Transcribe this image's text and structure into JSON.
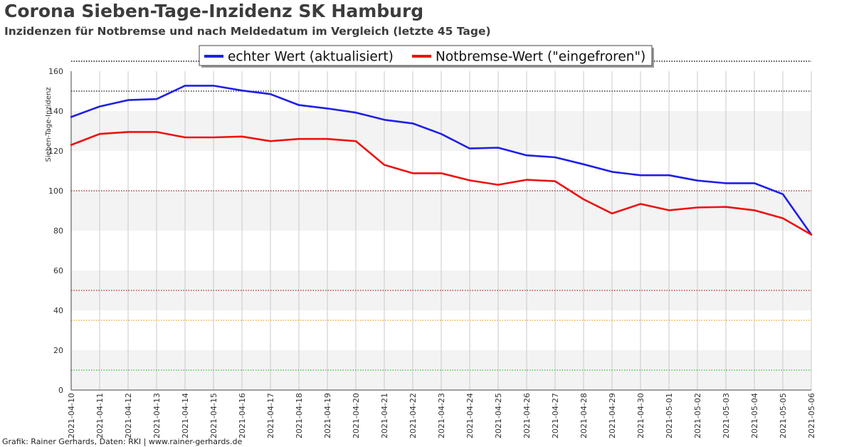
{
  "header": {
    "title": "Corona Sieben-Tage-Inzidenz SK Hamburg",
    "subtitle": "Inzidenzen für Notbremse und nach Meldedatum im Vergleich (letzte 45 Tage)"
  },
  "footer": {
    "credit": "Grafik: Rainer Gerhards, Daten: RKI | www.rainer-gerhards.de"
  },
  "chart_data": {
    "type": "line",
    "ylabel": "Sieben-Tage-Inzidenz",
    "ylim": [
      0,
      160
    ],
    "yticks": [
      0,
      20,
      40,
      60,
      80,
      100,
      120,
      140,
      160
    ],
    "grid": true,
    "legend_position": "top-center",
    "categories": [
      "2021-04-10",
      "2021-04-11",
      "2021-04-12",
      "2021-04-13",
      "2021-04-14",
      "2021-04-15",
      "2021-04-16",
      "2021-04-17",
      "2021-04-18",
      "2021-04-19",
      "2021-04-20",
      "2021-04-21",
      "2021-04-22",
      "2021-04-23",
      "2021-04-24",
      "2021-04-25",
      "2021-04-26",
      "2021-04-27",
      "2021-04-28",
      "2021-04-29",
      "2021-04-30",
      "2021-05-01",
      "2021-05-02",
      "2021-05-03",
      "2021-05-04",
      "2021-05-05",
      "2021-05-06"
    ],
    "series": [
      {
        "name": "echter Wert (aktualisiert)",
        "color": "#1f1fe6",
        "values": [
          137,
          142.3,
          145.5,
          146,
          152.7,
          152.7,
          150.3,
          148.5,
          143,
          141.3,
          139.2,
          135.6,
          133.8,
          128.5,
          121.2,
          121.6,
          117.8,
          116.8,
          113.3,
          109.5,
          107.8,
          107.8,
          105.1,
          103.8,
          103.8,
          98.3,
          78
        ]
      },
      {
        "name": "Notbremse-Wert (\"eingefroren\")",
        "color": "#ee1111",
        "values": [
          123,
          128.5,
          129.5,
          129.5,
          126.8,
          126.8,
          127.2,
          124.9,
          126,
          126,
          124.9,
          113,
          108.8,
          108.8,
          105.2,
          103,
          105.5,
          104.8,
          95.7,
          88.6,
          93.4,
          90.2,
          91.6,
          91.9,
          90.2,
          86.2,
          78
        ]
      }
    ],
    "reference_lines": [
      {
        "value": 150,
        "color": "#111111"
      },
      {
        "value": 100,
        "color": "#8b1a1a"
      },
      {
        "value": 50,
        "color": "#b22222"
      },
      {
        "value": 35,
        "color": "#e6a020"
      },
      {
        "value": 10,
        "color": "#33bb33"
      }
    ],
    "band_colors": {
      "shaded": "#f3f3f3",
      "plain": "#ffffff"
    }
  }
}
